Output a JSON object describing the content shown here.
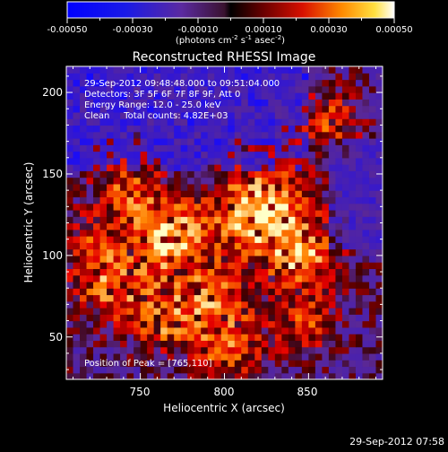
{
  "colorbar": {
    "ticks": [
      "-0.00050",
      "-0.00030",
      "-0.00010",
      "0.00010",
      "0.00030",
      "0.00050"
    ],
    "unit_parts": [
      "(photons cm",
      "-2",
      " s",
      "-1",
      " asec",
      "-2",
      ")"
    ]
  },
  "chart_data": {
    "type": "heatmap",
    "title": "Reconstructed RHESSI Image",
    "xlabel": "Heliocentric X (arcsec)",
    "ylabel": "Heliocentric Y (arcsec)",
    "xlim": [
      706,
      894
    ],
    "ylim": [
      24,
      216
    ],
    "xticks": [
      750,
      800,
      850
    ],
    "yticks": [
      50,
      100,
      150,
      200
    ],
    "value_range": [
      -0.0005,
      0.0005
    ],
    "colormap": "red-temperature with blue negatives",
    "annotations": [
      "29-Sep-2012 09:48:48.000 to 09:51:04.000",
      "Detectors: 3F 5F 6F 7F 8F 9F, Att 0",
      "Energy Range: 12.0 - 25.0 keV",
      "Clean     Total counts: 4.82E+03"
    ],
    "peak_label": "Position of Peak = [765,110]",
    "peak": [
      765,
      110
    ]
  },
  "footer": {
    "timestamp": "29-Sep-2012 07:58"
  },
  "colors": {
    "background": "#000000",
    "text": "#ffffff",
    "negative": "#1a1aff",
    "neutral": "#5a2a9a",
    "positive_peak": "#ffffd0"
  }
}
